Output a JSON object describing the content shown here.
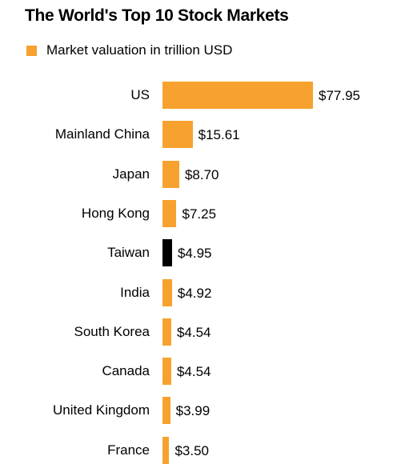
{
  "chart_data": {
    "type": "bar",
    "orientation": "horizontal",
    "title": "The World's Top 10 Stock Markets",
    "categories": [
      "US",
      "Mainland China",
      "Japan",
      "Hong Kong",
      "Taiwan",
      "India",
      "South Korea",
      "Canada",
      "United Kingdom",
      "France"
    ],
    "series": [
      {
        "name": "Market valuation in trillion USD",
        "color": "#f7a22e",
        "values": [
          77.95,
          15.61,
          8.7,
          7.25,
          4.95,
          4.92,
          4.54,
          4.54,
          3.99,
          3.5
        ],
        "value_labels": [
          "$77.95",
          "$15.61",
          "$8.70",
          "$7.25",
          "$4.95",
          "$4.92",
          "$4.54",
          "$4.54",
          "$3.99",
          "$3.50"
        ]
      }
    ],
    "colors": [
      "#f7a22e",
      "#f7a22e",
      "#f7a22e",
      "#f7a22e",
      "#000000",
      "#f7a22e",
      "#f7a22e",
      "#f7a22e",
      "#f7a22e",
      "#f7a22e"
    ],
    "legend": "top-left"
  }
}
